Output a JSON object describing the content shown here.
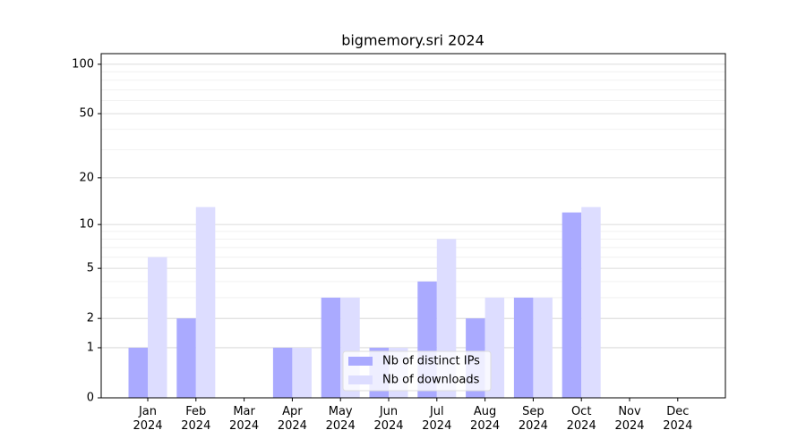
{
  "chart_data": {
    "type": "bar",
    "title": "bigmemory.sri 2024",
    "categories": [
      "Jan\n2024",
      "Feb\n2024",
      "Mar\n2024",
      "Apr\n2024",
      "May\n2024",
      "Jun\n2024",
      "Jul\n2024",
      "Aug\n2024",
      "Sep\n2024",
      "Oct\n2024",
      "Nov\n2024",
      "Dec\n2024"
    ],
    "series": [
      {
        "name": "Nb of distinct IPs",
        "color": "#aaaaff",
        "values": [
          1,
          2,
          0,
          1,
          3,
          1,
          4,
          2,
          3,
          12,
          0,
          0
        ]
      },
      {
        "name": "Nb of downloads",
        "color": "#ddddff",
        "values": [
          6,
          13,
          0,
          1,
          3,
          1,
          8,
          3,
          3,
          13,
          0,
          0
        ]
      }
    ],
    "yscale": "log1p",
    "ylim": [
      0,
      116
    ],
    "yticks": [
      0,
      1,
      2,
      5,
      10,
      20,
      50,
      100
    ],
    "minor_yticks": [
      3,
      4,
      6,
      7,
      8,
      9,
      30,
      40,
      60,
      70,
      80,
      90
    ],
    "grid": true,
    "legend": "lower center"
  }
}
